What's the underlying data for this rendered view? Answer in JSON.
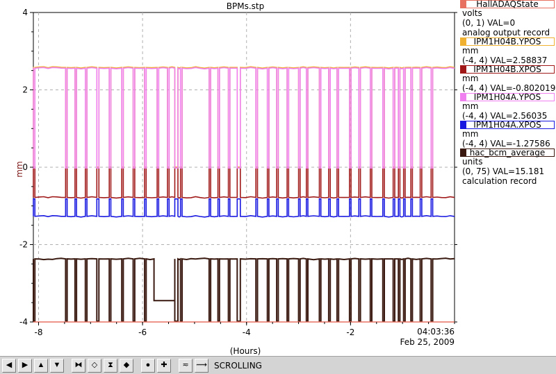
{
  "window": {
    "title": "BPMs.stp"
  },
  "chart_data": {
    "type": "line",
    "title": "BPMs.stp",
    "xlabel": "(Hours)",
    "ylabel": "mm",
    "xlim": [
      -8.1,
      0
    ],
    "ylim": [
      -4,
      4
    ],
    "x_ticks": [
      -8,
      -6,
      -4,
      -2
    ],
    "x_tick_labels": [
      "-8",
      "-6",
      "-4",
      "-2"
    ],
    "y_ticks": [
      -4,
      -2,
      0,
      2,
      4
    ],
    "y_tick_labels": [
      "-4",
      "-2",
      "0",
      "2",
      "4"
    ],
    "grid": true,
    "timestamp_time": "04:03:36",
    "timestamp_date": "Feb 25, 2009",
    "legend_position": "right",
    "beam_off_windows": [
      [
        -8.1,
        -8.07
      ],
      [
        -7.48,
        -7.45
      ],
      [
        -7.3,
        -7.27
      ],
      [
        -7.1,
        -7.07
      ],
      [
        -6.88,
        -6.84
      ],
      [
        -6.64,
        -6.61
      ],
      [
        -6.4,
        -6.37
      ],
      [
        -6.18,
        -6.15
      ],
      [
        -5.96,
        -5.93
      ],
      [
        -5.72,
        -5.69
      ],
      [
        -5.52,
        -5.49
      ],
      [
        -5.38,
        -5.32
      ],
      [
        -5.27,
        -5.24
      ],
      [
        -4.72,
        -4.69
      ],
      [
        -4.55,
        -4.52
      ],
      [
        -4.35,
        -4.32
      ],
      [
        -4.18,
        -4.12
      ],
      [
        -3.82,
        -3.79
      ],
      [
        -3.6,
        -3.57
      ],
      [
        -3.42,
        -3.39
      ],
      [
        -3.22,
        -3.19
      ],
      [
        -3.0,
        -2.97
      ],
      [
        -2.85,
        -2.82
      ],
      [
        -2.6,
        -2.57
      ],
      [
        -2.42,
        -2.39
      ],
      [
        -2.26,
        -2.23
      ],
      [
        -2.02,
        -1.99
      ],
      [
        -1.84,
        -1.81
      ],
      [
        -1.62,
        -1.59
      ],
      [
        -1.38,
        -1.35
      ],
      [
        -1.18,
        -1.15
      ],
      [
        -1.08,
        -1.05
      ],
      [
        -0.98,
        -0.95
      ],
      [
        -0.84,
        -0.81
      ],
      [
        -0.66,
        -0.63
      ],
      [
        -0.45,
        -0.42
      ]
    ],
    "series": [
      {
        "name": "HallADAQState",
        "color": "#e87060",
        "unit": "volts",
        "range": "(0, 1)",
        "val": "VAL=0",
        "desc": "analog output record",
        "x": [
          -8.1,
          0
        ],
        "y": [
          -4,
          -4
        ]
      },
      {
        "name": "IPM1H04B.YPOS",
        "color": "#f0b030",
        "unit": "mm",
        "range": "(-4, 4)",
        "val": "VAL=2.58837",
        "desc": "",
        "nominal": 2.58,
        "beam_off_value": 0
      },
      {
        "name": "IPM1H04B.XPOS",
        "color": "#a01818",
        "unit": "mm",
        "range": "(-4, 4)",
        "val": "VAL=-0.802019",
        "desc": "",
        "nominal": -0.78,
        "beam_off_value": 0
      },
      {
        "name": "IPM1H04A.YPOS",
        "color": "#f080f0",
        "unit": "mm",
        "range": "(-4, 4)",
        "val": "VAL=2.56035",
        "desc": "",
        "nominal": 2.56,
        "beam_off_value": -0.02
      },
      {
        "name": "IPM1H04A.XPOS",
        "color": "#1818e0",
        "unit": "mm",
        "range": "(-4, 4)",
        "val": "VAL=-1.27586",
        "desc": "",
        "nominal": -1.27,
        "beam_off_value": -0.82
      },
      {
        "name": "hac_bcm_average",
        "color": "#3a1a10",
        "unit": "units",
        "range": "(0, 75)",
        "val": "VAL=15.181",
        "desc": "calculation record",
        "nominal": -2.37,
        "beam_off_value": -3.98,
        "dip_window": [
          -5.78,
          -5.38
        ],
        "dip_value": -3.45
      }
    ]
  },
  "toolbar": {
    "mode_label": "SCROLLING",
    "buttons": [
      {
        "icon": "arrow-left-icon",
        "glyph": "◀"
      },
      {
        "icon": "arrow-right-icon",
        "glyph": "▶"
      },
      {
        "icon": "arrow-up-icon",
        "glyph": "▲"
      },
      {
        "icon": "arrow-down-icon",
        "glyph": "▼"
      },
      {
        "icon": "zoom-in-horizontal-icon",
        "glyph": "⧓"
      },
      {
        "icon": "zoom-out-horizontal-icon",
        "glyph": "◇"
      },
      {
        "icon": "zoom-in-vertical-icon",
        "glyph": "⧗"
      },
      {
        "icon": "zoom-out-vertical-icon",
        "glyph": "◆"
      },
      {
        "icon": "record-icon",
        "glyph": "●"
      },
      {
        "icon": "add-icon",
        "glyph": "✚"
      },
      {
        "icon": "auto-scale-icon",
        "glyph": "≂"
      },
      {
        "icon": "scroll-mode-icon",
        "glyph": "⟿"
      }
    ]
  }
}
